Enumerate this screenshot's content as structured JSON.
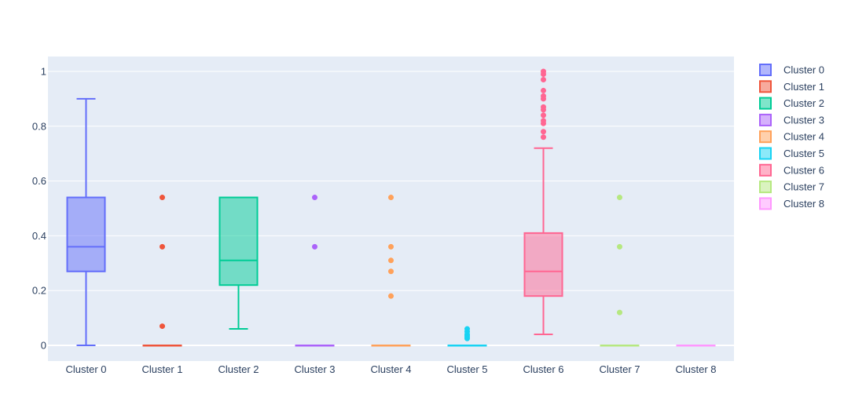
{
  "chart_data": {
    "type": "box",
    "title": "",
    "xlabel": "",
    "ylabel": "",
    "ylim": [
      -0.05,
      1.05
    ],
    "yticks": [
      0,
      0.2,
      0.4,
      0.6,
      0.8,
      1
    ],
    "ytick_labels": [
      "0",
      "0.2",
      "0.4",
      "0.6",
      "0.8",
      "1"
    ],
    "grid": true,
    "legend_position": "right",
    "categories": [
      "Cluster 0",
      "Cluster 1",
      "Cluster 2",
      "Cluster 3",
      "Cluster 4",
      "Cluster 5",
      "Cluster 6",
      "Cluster 7",
      "Cluster 8"
    ],
    "series": [
      {
        "name": "Cluster 0",
        "color": "#636efa",
        "lowerfence": 0,
        "q1": 0.27,
        "median": 0.36,
        "q3": 0.54,
        "upperfence": 0.9,
        "outliers": []
      },
      {
        "name": "Cluster 1",
        "color": "#EF553B",
        "lowerfence": 0,
        "q1": 0,
        "median": 0,
        "q3": 0,
        "upperfence": 0,
        "outliers": [
          0.54,
          0.36,
          0.07
        ]
      },
      {
        "name": "Cluster 2",
        "color": "#00cc96",
        "lowerfence": 0.06,
        "q1": 0.22,
        "median": 0.31,
        "q3": 0.54,
        "upperfence": 0.54,
        "outliers": []
      },
      {
        "name": "Cluster 3",
        "color": "#ab63fa",
        "lowerfence": 0,
        "q1": 0,
        "median": 0,
        "q3": 0,
        "upperfence": 0,
        "outliers": [
          0.54,
          0.36
        ]
      },
      {
        "name": "Cluster 4",
        "color": "#FFA15A",
        "lowerfence": 0,
        "q1": 0,
        "median": 0,
        "q3": 0,
        "upperfence": 0,
        "outliers": [
          0.54,
          0.36,
          0.31,
          0.27,
          0.18
        ]
      },
      {
        "name": "Cluster 5",
        "color": "#19d3f3",
        "lowerfence": 0,
        "q1": 0,
        "median": 0,
        "q3": 0,
        "upperfence": 0,
        "outliers": [
          0.06,
          0.05,
          0.04,
          0.035,
          0.03,
          0.025
        ]
      },
      {
        "name": "Cluster 6",
        "color": "#FF6692",
        "lowerfence": 0.04,
        "q1": 0.18,
        "median": 0.27,
        "q3": 0.41,
        "upperfence": 0.72,
        "outliers": [
          1.0,
          0.99,
          0.97,
          0.93,
          0.91,
          0.9,
          0.87,
          0.86,
          0.84,
          0.82,
          0.81,
          0.78,
          0.76
        ]
      },
      {
        "name": "Cluster 7",
        "color": "#B6E880",
        "lowerfence": 0,
        "q1": 0,
        "median": 0,
        "q3": 0,
        "upperfence": 0,
        "outliers": [
          0.54,
          0.36,
          0.12
        ]
      },
      {
        "name": "Cluster 8",
        "color": "#FF97FF",
        "lowerfence": 0,
        "q1": 0,
        "median": 0,
        "q3": 0,
        "upperfence": 0,
        "outliers": []
      }
    ]
  },
  "legend": {
    "items": [
      "Cluster 0",
      "Cluster 1",
      "Cluster 2",
      "Cluster 3",
      "Cluster 4",
      "Cluster 5",
      "Cluster 6",
      "Cluster 7",
      "Cluster 8"
    ]
  },
  "colors": {
    "plot_background": "#e5ecf6",
    "grid": "#ffffff",
    "text": "#2a3f5f"
  }
}
